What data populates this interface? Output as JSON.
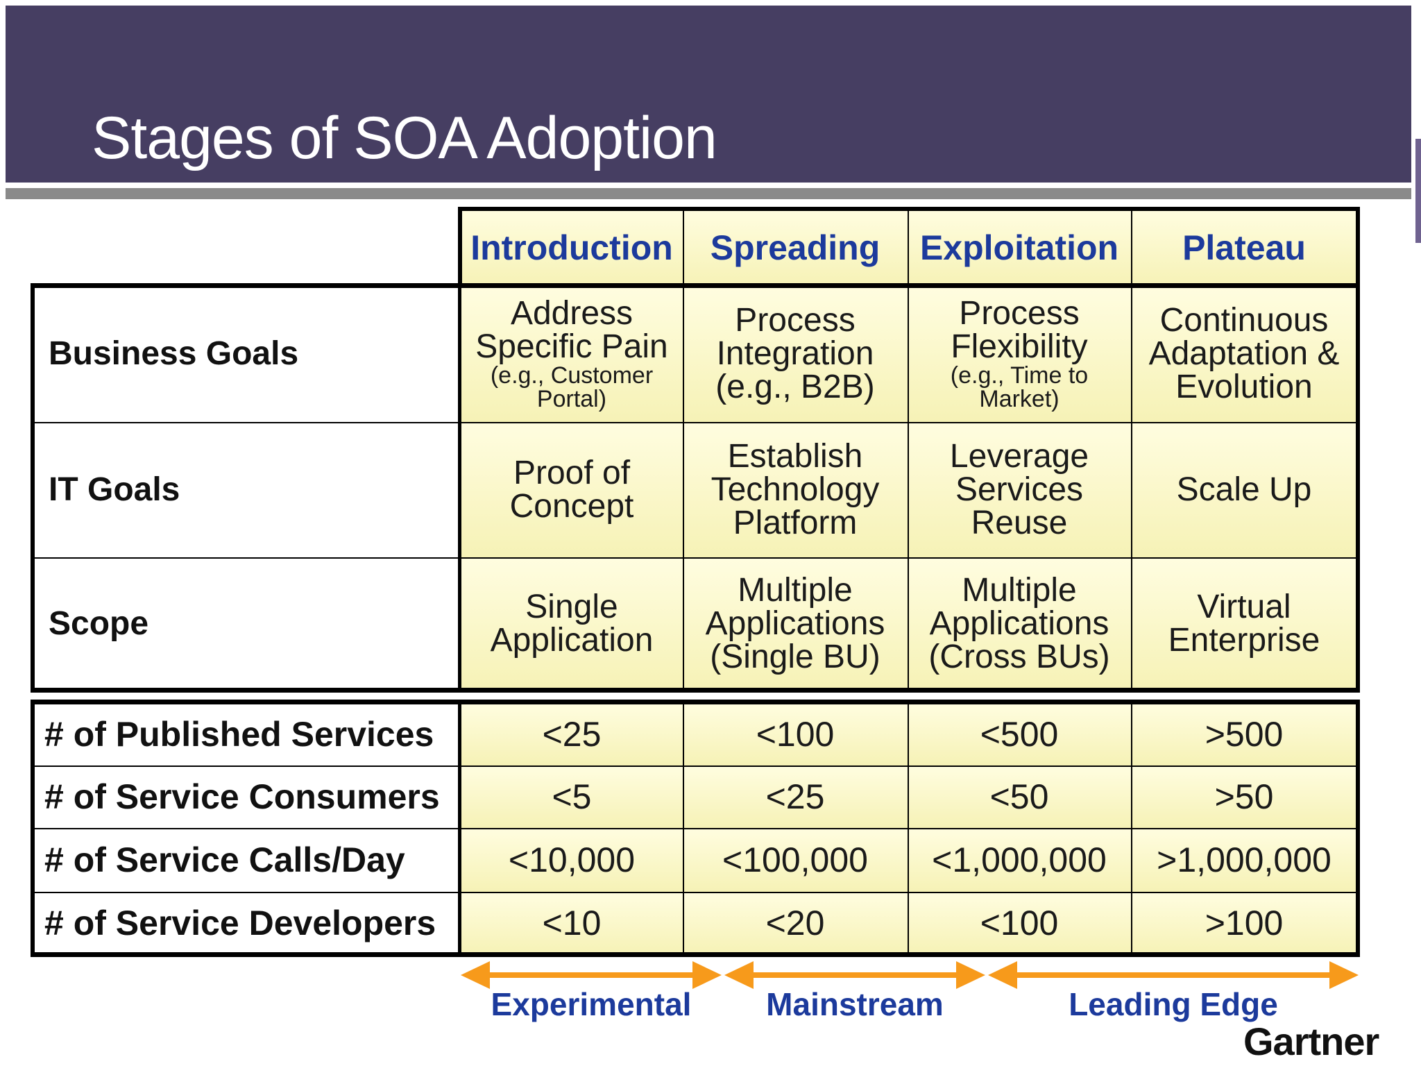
{
  "title": "Stages of SOA Adoption",
  "stages": [
    "Introduction",
    "Spreading",
    "Exploitation",
    "Plateau"
  ],
  "goals": [
    {
      "label": "Business Goals",
      "cells": [
        {
          "main": "Address Specific Pain",
          "sub": "(e.g., Customer Portal)"
        },
        {
          "main": "Process Integration (e.g., B2B)",
          "sub": ""
        },
        {
          "main": "Process Flexibility",
          "sub": "(e.g., Time to Market)"
        },
        {
          "main": "Continuous Adaptation & Evolution",
          "sub": ""
        }
      ]
    },
    {
      "label": "IT Goals",
      "cells": [
        {
          "main": "Proof of Concept",
          "sub": ""
        },
        {
          "main": "Establish Technology Platform",
          "sub": ""
        },
        {
          "main": "Leverage Services Reuse",
          "sub": ""
        },
        {
          "main": "Scale Up",
          "sub": ""
        }
      ]
    },
    {
      "label": "Scope",
      "cells": [
        {
          "main": "Single Application",
          "sub": ""
        },
        {
          "main": "Multiple Applications (Single BU)",
          "sub": ""
        },
        {
          "main": "Multiple Applications (Cross BUs)",
          "sub": ""
        },
        {
          "main": "Virtual Enterprise",
          "sub": ""
        }
      ]
    }
  ],
  "metrics": [
    {
      "label": "# of Published Services",
      "values": [
        "<25",
        "<100",
        "<500",
        ">500"
      ]
    },
    {
      "label": "# of Service Consumers",
      "values": [
        "<5",
        "<25",
        "<50",
        ">50"
      ]
    },
    {
      "label": "# of Service Calls/Day",
      "values": [
        "<10,000",
        "<100,000",
        "<1,000,000",
        ">1,000,000"
      ]
    },
    {
      "label": "# of Service Developers",
      "values": [
        "<10",
        "<20",
        "<100",
        ">100"
      ]
    }
  ],
  "phases": [
    "Experimental",
    "Mainstream",
    "Leading Edge"
  ],
  "brand": "Gartner",
  "colors": {
    "header": "#463e62",
    "accent_text": "#1c3a9c",
    "arrow": "#f79a1b",
    "cell_fill": "#f8f4c2"
  }
}
